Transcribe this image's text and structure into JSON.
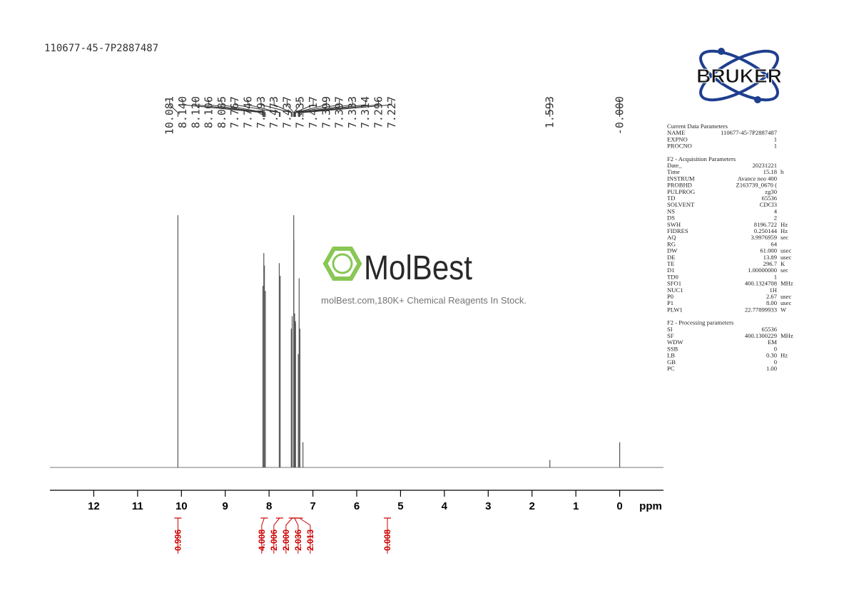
{
  "chart_data": {
    "type": "spectrum",
    "title": "110677-45-7P2887487",
    "x": [
      10.081,
      8.14,
      8.12,
      8.106,
      8.085,
      7.767,
      7.746,
      7.493,
      7.473,
      7.437,
      7.435,
      7.417,
      7.399,
      7.397,
      7.333,
      7.314,
      7.296,
      7.227,
      1.593,
      0.0
    ],
    "peak_labels": [
      "10.081",
      "8.140",
      "8.120",
      "8.106",
      "8.085",
      "7.767",
      "7.746",
      "7.493",
      "7.473",
      "7.437",
      "7.435",
      "7.417",
      "7.399",
      "7.397",
      "7.333",
      "7.314",
      "7.296",
      "7.227",
      "1.593",
      "-0.000"
    ],
    "series": [
      {
        "color": "#555555",
        "values": [
          100,
          72,
          85,
          80,
          70,
          81,
          76,
          55,
          60,
          100,
          90,
          61,
          58,
          57,
          45,
          75,
          55,
          10,
          3,
          10
        ]
      }
    ],
    "xlim": [
      13,
      -1
    ],
    "ylim": [
      0,
      100
    ],
    "xticks": [
      12,
      11,
      10,
      9,
      8,
      7,
      6,
      5,
      4,
      3,
      2,
      1,
      0
    ],
    "xlabel": "ppm",
    "integrals": {
      "color": "#cc0000",
      "x": [
        10.08,
        8.11,
        7.76,
        7.47,
        7.42,
        7.31,
        5.3
      ],
      "values": [
        0.996,
        4.008,
        2.006,
        2.0,
        2.036,
        2.013,
        0.008
      ],
      "value_labels": [
        "0.996",
        "4.008",
        "2.006",
        "2.000",
        "2.036",
        "2.013",
        "0.008"
      ]
    }
  },
  "watermark": {
    "name": "MolBest",
    "tagline": "molBest.com,180K+ Chemical Reagents In Stock."
  },
  "logo": "BRUKER",
  "parameters": [
    {
      "title": "Current Data Parameters",
      "rows": [
        [
          "NAME",
          "110677-45-7P2887487"
        ],
        [
          "EXPNO",
          "1"
        ],
        [
          "PROCNO",
          "1"
        ]
      ]
    },
    {
      "title": "F2 - Acquisition Parameters",
      "rows": [
        [
          "Date_",
          "20231221"
        ],
        [
          "Time",
          "15.18",
          "h"
        ],
        [
          "INSTRUM",
          "Avance neo 400"
        ],
        [
          "PROBHD",
          "Z163739_0670 ("
        ],
        [
          "PULPROG",
          "zg30"
        ],
        [
          "TD",
          "65536"
        ],
        [
          "SOLVENT",
          "CDCl3"
        ],
        [
          "NS",
          "4"
        ],
        [
          "DS",
          "2"
        ],
        [
          "SWH",
          "8196.722",
          "Hz"
        ],
        [
          "FIDRES",
          "0.250144",
          "Hz"
        ],
        [
          "AQ",
          "3.9976959",
          "sec"
        ],
        [
          "RG",
          "64"
        ],
        [
          "DW",
          "61.000",
          "usec"
        ],
        [
          "DE",
          "13.89",
          "usec"
        ],
        [
          "TE",
          "296.7",
          "K"
        ],
        [
          "D1",
          "1.00000000",
          "sec"
        ],
        [
          "TD0",
          "1"
        ],
        [
          "SFO1",
          "400.1324708",
          "MHz"
        ],
        [
          "NUC1",
          "1H"
        ],
        [
          "P0",
          "2.67",
          "usec"
        ],
        [
          "P1",
          "8.00",
          "usec"
        ],
        [
          "PLW1",
          "22.77899933",
          "W"
        ]
      ]
    },
    {
      "title": "F2 - Processing parameters",
      "rows": [
        [
          "SI",
          "65536"
        ],
        [
          "SF",
          "400.1300229",
          "MHz"
        ],
        [
          "WDW",
          "EM"
        ],
        [
          "SSB",
          "0"
        ],
        [
          "LB",
          "0.30",
          "Hz"
        ],
        [
          "GB",
          "0"
        ],
        [
          "PC",
          "1.00"
        ]
      ]
    }
  ]
}
